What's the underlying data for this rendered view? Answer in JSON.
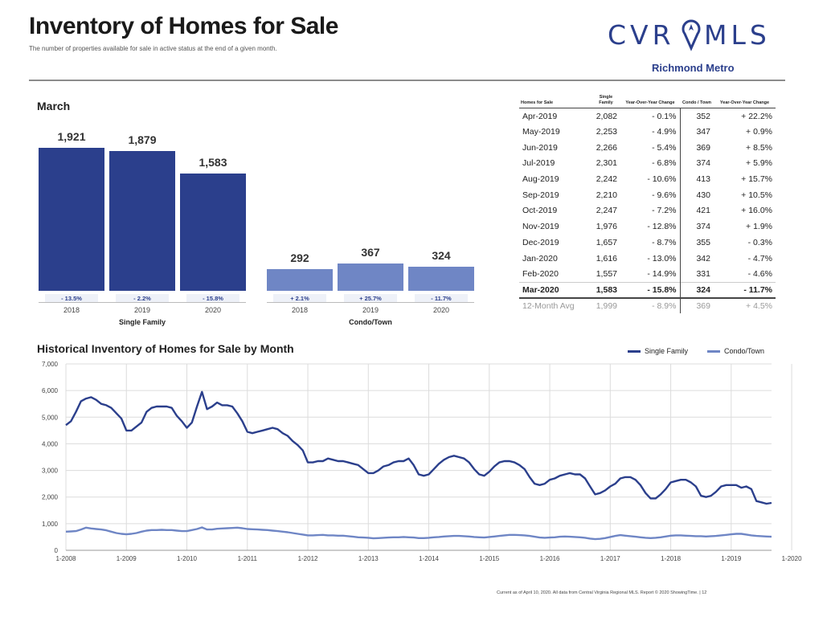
{
  "header": {
    "title": "Inventory of Homes for Sale",
    "subtitle": "The number of properties available for sale in active status at the end of a given month.",
    "logo_text": "CVRMLS",
    "region": "Richmond Metro"
  },
  "colors": {
    "single_family": "#2b3f8c",
    "condo": "#6f86c5",
    "accent": "#2b3f8c"
  },
  "bar_chart": {
    "month_label": "March",
    "groups": [
      {
        "name": "Single Family",
        "bars": [
          {
            "year": "2018",
            "value": 1921,
            "label": "1,921",
            "change": "- 13.5%"
          },
          {
            "year": "2019",
            "value": 1879,
            "label": "1,879",
            "change": "- 2.2%"
          },
          {
            "year": "2020",
            "value": 1583,
            "label": "1,583",
            "change": "- 15.8%"
          }
        ]
      },
      {
        "name": "Condo/Town",
        "bars": [
          {
            "year": "2018",
            "value": 292,
            "label": "292",
            "change": "+ 2.1%"
          },
          {
            "year": "2019",
            "value": 367,
            "label": "367",
            "change": "+ 25.7%"
          },
          {
            "year": "2020",
            "value": 324,
            "label": "324",
            "change": "- 11.7%"
          }
        ]
      }
    ]
  },
  "table": {
    "headers": [
      "Homes for Sale",
      "Single Family",
      "Year-Over-Year Change",
      "Condo / Town",
      "Year-Over-Year Change"
    ],
    "rows": [
      [
        "Apr-2019",
        "2,082",
        "- 0.1%",
        "352",
        "+ 22.2%"
      ],
      [
        "May-2019",
        "2,253",
        "- 4.9%",
        "347",
        "+ 0.9%"
      ],
      [
        "Jun-2019",
        "2,266",
        "- 5.4%",
        "369",
        "+ 8.5%"
      ],
      [
        "Jul-2019",
        "2,301",
        "- 6.8%",
        "374",
        "+ 5.9%"
      ],
      [
        "Aug-2019",
        "2,242",
        "- 10.6%",
        "413",
        "+ 15.7%"
      ],
      [
        "Sep-2019",
        "2,210",
        "- 9.6%",
        "430",
        "+ 10.5%"
      ],
      [
        "Oct-2019",
        "2,247",
        "- 7.2%",
        "421",
        "+ 16.0%"
      ],
      [
        "Nov-2019",
        "1,976",
        "- 12.8%",
        "374",
        "+ 1.9%"
      ],
      [
        "Dec-2019",
        "1,657",
        "- 8.7%",
        "355",
        "- 0.3%"
      ],
      [
        "Jan-2020",
        "1,616",
        "- 13.0%",
        "342",
        "- 4.7%"
      ],
      [
        "Feb-2020",
        "1,557",
        "- 14.9%",
        "331",
        "- 4.6%"
      ]
    ],
    "current_row": [
      "Mar-2020",
      "1,583",
      "- 15.8%",
      "324",
      "- 11.7%"
    ],
    "avg_row": [
      "12-Month Avg",
      "1,999",
      "- 8.9%",
      "369",
      "+ 4.5%"
    ]
  },
  "history": {
    "title": "Historical Inventory of Homes for Sale by Month",
    "legend": [
      "Single Family",
      "Condo/Town"
    ]
  },
  "chart_data": {
    "type": "line",
    "title": "Historical Inventory of Homes for Sale by Month",
    "ylim": [
      0,
      7000
    ],
    "y_ticks": [
      "0",
      "1,000",
      "2,000",
      "3,000",
      "4,000",
      "5,000",
      "6,000",
      "7,000"
    ],
    "x_ticks": [
      "1-2008",
      "1-2009",
      "1-2010",
      "1-2011",
      "1-2012",
      "1-2013",
      "1-2014",
      "1-2015",
      "1-2016",
      "1-2017",
      "1-2018",
      "1-2019",
      "1-2020"
    ],
    "grid": true,
    "legend_position": "top-right",
    "x_start": "2008-01",
    "series": [
      {
        "name": "Single Family",
        "values": [
          4700,
          4850,
          5200,
          5600,
          5700,
          5750,
          5650,
          5500,
          5450,
          5350,
          5150,
          4950,
          4500,
          4500,
          4650,
          4800,
          5200,
          5350,
          5400,
          5400,
          5400,
          5350,
          5050,
          4850,
          4600,
          4800,
          5400,
          5950,
          5300,
          5400,
          5550,
          5450,
          5450,
          5400,
          5150,
          4850,
          4450,
          4400,
          4450,
          4500,
          4550,
          4600,
          4550,
          4400,
          4300,
          4100,
          3950,
          3750,
          3300,
          3300,
          3350,
          3350,
          3450,
          3400,
          3350,
          3350,
          3300,
          3250,
          3200,
          3050,
          2900,
          2900,
          3000,
          3150,
          3200,
          3300,
          3350,
          3350,
          3450,
          3200,
          2850,
          2800,
          2850,
          3050,
          3250,
          3400,
          3500,
          3550,
          3500,
          3450,
          3300,
          3050,
          2850,
          2800,
          2950,
          3150,
          3300,
          3350,
          3350,
          3300,
          3200,
          3050,
          2750,
          2500,
          2450,
          2500,
          2650,
          2700,
          2800,
          2850,
          2900,
          2850,
          2850,
          2700,
          2400,
          2100,
          2150,
          2250,
          2400,
          2500,
          2700,
          2750,
          2750,
          2650,
          2450,
          2150,
          1950,
          1950,
          2100,
          2300,
          2550,
          2600,
          2650,
          2650,
          2550,
          2400,
          2050,
          2000,
          2050,
          2200,
          2400,
          2450,
          2450,
          2450,
          2350,
          2400,
          2300,
          1850,
          1800,
          1750,
          1780
        ]
      },
      {
        "name": "Condo/Town",
        "values": [
          700,
          710,
          720,
          780,
          850,
          820,
          800,
          780,
          750,
          700,
          650,
          620,
          600,
          620,
          650,
          700,
          740,
          760,
          760,
          770,
          760,
          760,
          740,
          720,
          720,
          760,
          800,
          860,
          780,
          780,
          810,
          820,
          830,
          840,
          850,
          830,
          800,
          790,
          780,
          770,
          760,
          740,
          720,
          700,
          680,
          650,
          620,
          590,
          560,
          560,
          570,
          580,
          560,
          560,
          550,
          550,
          530,
          510,
          490,
          480,
          470,
          450,
          460,
          470,
          480,
          490,
          490,
          500,
          490,
          480,
          460,
          460,
          470,
          490,
          500,
          520,
          530,
          540,
          540,
          530,
          520,
          500,
          490,
          480,
          500,
          520,
          540,
          560,
          580,
          580,
          570,
          560,
          540,
          510,
          480,
          470,
          480,
          490,
          510,
          520,
          510,
          500,
          490,
          470,
          440,
          420,
          430,
          460,
          500,
          540,
          570,
          550,
          530,
          510,
          490,
          470,
          460,
          470,
          490,
          520,
          550,
          560,
          560,
          550,
          540,
          530,
          530,
          520,
          530,
          540,
          560,
          580,
          600,
          620,
          620,
          590,
          560,
          540,
          530,
          520,
          510
        ]
      }
    ]
  },
  "footer": "Current as of April 10, 2020. All data from Central Virginia Regional MLS. Report © 2020 ShowingTime. | 12"
}
